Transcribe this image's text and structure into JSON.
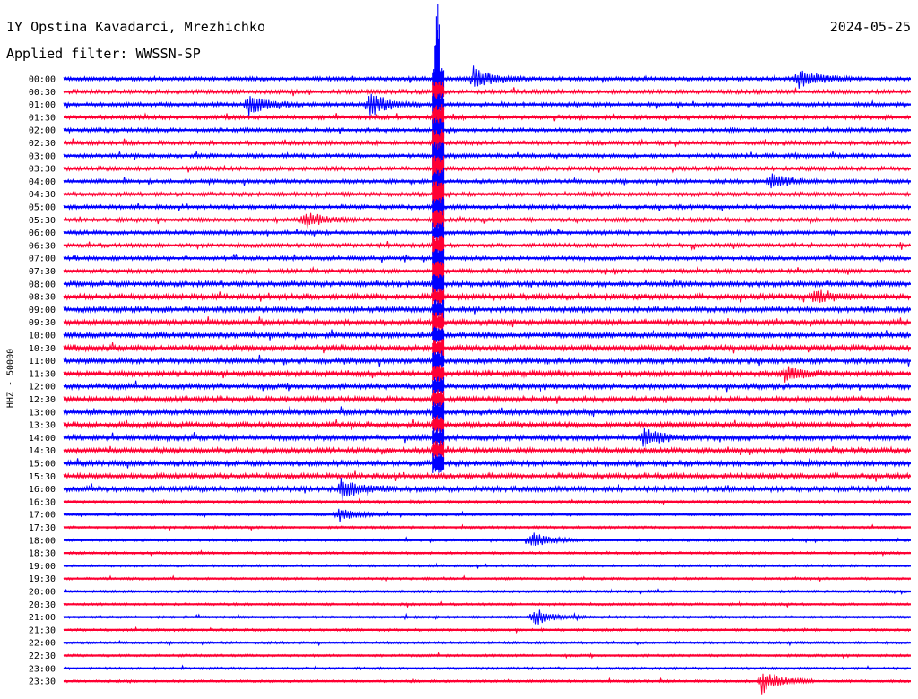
{
  "header": {
    "station": "1Y Opstina Kavadarci, Mrezhichko",
    "date": "2024-05-25",
    "filter": "Applied filter: WWSSN-SP"
  },
  "colors": {
    "even_trace": "#0000ff",
    "odd_trace": "#ff0033",
    "background": "#ffffff"
  },
  "chart_data": {
    "type": "line",
    "title": "1Y Opstina Kavadarci, Mrezhichko",
    "ylabel": "HHZ - 50000",
    "xlabel": "",
    "y_tick_labels": [
      "00:00",
      "00:30",
      "01:00",
      "01:30",
      "02:00",
      "02:30",
      "03:00",
      "03:30",
      "04:00",
      "04:30",
      "05:00",
      "05:30",
      "06:00",
      "06:30",
      "07:00",
      "07:30",
      "08:00",
      "08:30",
      "09:00",
      "09:30",
      "10:00",
      "10:30",
      "11:00",
      "11:30",
      "12:00",
      "12:30",
      "13:00",
      "13:30",
      "14:00",
      "14:30",
      "15:00",
      "15:30",
      "16:00",
      "16:30",
      "17:00",
      "17:30",
      "18:00",
      "18:30",
      "19:00",
      "19:30",
      "20:00",
      "20:30",
      "21:00",
      "21:30",
      "22:00",
      "22:30",
      "23:00",
      "23:30"
    ],
    "trace_colors": [
      "blue",
      "red"
    ],
    "minutes_per_trace": 30,
    "events_minutes_offset": [
      {
        "row": "00:00",
        "minute": 14.5,
        "amp": 0.9
      },
      {
        "row": "00:00",
        "minute": 26.0,
        "amp": 0.8
      },
      {
        "row": "01:00",
        "minute": 6.5,
        "amp": 0.8
      },
      {
        "row": "01:00",
        "minute": 10.8,
        "amp": 0.9
      },
      {
        "row": "04:00",
        "minute": 25.0,
        "amp": 0.6
      },
      {
        "row": "05:30",
        "minute": 8.5,
        "amp": 0.6
      },
      {
        "row": "08:30",
        "minute": 26.5,
        "amp": 0.6
      },
      {
        "row": "11:30",
        "minute": 25.5,
        "amp": 0.6
      },
      {
        "row": "14:00",
        "minute": 20.5,
        "amp": 0.7
      },
      {
        "row": "16:00",
        "minute": 9.8,
        "amp": 0.7
      },
      {
        "row": "17:00",
        "minute": 9.7,
        "amp": 0.5
      },
      {
        "row": "18:00",
        "minute": 16.5,
        "amp": 0.6
      },
      {
        "row": "21:00",
        "minute": 16.6,
        "amp": 0.7
      },
      {
        "row": "23:30",
        "minute": 24.7,
        "amp": 0.9
      }
    ],
    "main_event": {
      "start_row": "00:00",
      "end_row": "15:00",
      "minute": 13.2
    }
  }
}
